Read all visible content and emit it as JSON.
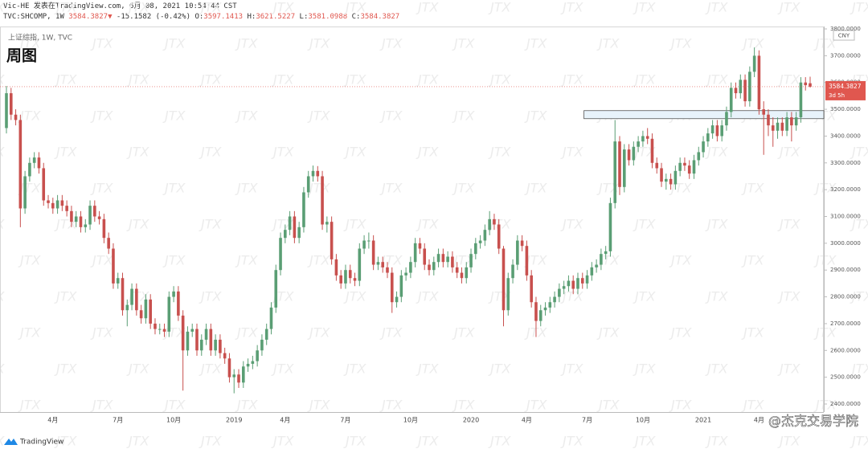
{
  "header": {
    "published": "Vic-HE 发表在TradingView.com, 6月 08, 2021 10:54:44 CST",
    "symbol": "TVC:SHCOMP, 1W",
    "arrow": "▼",
    "change": "-15.1582 (-0.42%)",
    "o": "O:",
    "h": "H:",
    "l": "L:",
    "c": "C:"
  },
  "footer": {
    "logo": "TradingView",
    "credit": "@杰克交易学院"
  },
  "watermark": "JTX",
  "chart_data": {
    "type": "candlestick",
    "title": "周图",
    "subtitle": "上证综指, 1W, TVC",
    "currency": "CNY",
    "countdown": "3d 5h",
    "up_color": "#5a9e74",
    "down_color": "#c8504e",
    "last_color": "#e0574f",
    "ylim": [
      2370,
      3809
    ],
    "yticks": [
      {
        "value": 2400,
        "label": "2400.0000"
      },
      {
        "value": 2500,
        "label": "2500.0000"
      },
      {
        "value": 2600,
        "label": "2600.0000"
      },
      {
        "value": 2700,
        "label": "2700.0000"
      },
      {
        "value": 2800,
        "label": "2800.0000"
      },
      {
        "value": 2900,
        "label": "2900.0000"
      },
      {
        "value": 3000,
        "label": "3000.0000"
      },
      {
        "value": 3100,
        "label": "3100.0000"
      },
      {
        "value": 3200,
        "label": "3200.0000"
      },
      {
        "value": 3300,
        "label": "3300.0000"
      },
      {
        "value": 3400,
        "label": "3400.0000"
      },
      {
        "value": 3500,
        "label": "3500.0000"
      },
      {
        "value": 3600,
        "label": "3600.0000"
      },
      {
        "value": 3700,
        "label": "3700.0000"
      },
      {
        "value": 3800,
        "label": "3800.0000"
      }
    ],
    "zone": {
      "start": 125,
      "low": 3465,
      "high": 3495
    },
    "categories": [
      null,
      null,
      null,
      null,
      null,
      null,
      null,
      null,
      null,
      null,
      "4月",
      null,
      null,
      null,
      null,
      null,
      null,
      null,
      null,
      null,
      null,
      null,
      null,
      null,
      "7月",
      null,
      null,
      null,
      null,
      null,
      null,
      null,
      null,
      null,
      null,
      null,
      "10月",
      null,
      null,
      null,
      null,
      null,
      null,
      null,
      null,
      null,
      null,
      null,
      null,
      "2019",
      null,
      null,
      null,
      null,
      null,
      null,
      null,
      null,
      null,
      null,
      "4月",
      null,
      null,
      null,
      null,
      null,
      null,
      null,
      null,
      null,
      null,
      null,
      null,
      "7月",
      null,
      null,
      null,
      null,
      null,
      null,
      null,
      null,
      null,
      null,
      null,
      null,
      null,
      "10月",
      null,
      null,
      null,
      null,
      null,
      null,
      null,
      null,
      null,
      null,
      null,
      null,
      "2020",
      null,
      null,
      null,
      null,
      null,
      null,
      null,
      null,
      null,
      null,
      null,
      "4月",
      null,
      null,
      null,
      null,
      null,
      null,
      null,
      null,
      null,
      null,
      null,
      null,
      "7月",
      null,
      null,
      null,
      null,
      null,
      null,
      null,
      null,
      null,
      null,
      null,
      "10月",
      null,
      null,
      null,
      null,
      null,
      null,
      null,
      null,
      null,
      null,
      null,
      null,
      "2021",
      null,
      null,
      null,
      null,
      null,
      null,
      null,
      null,
      null,
      null,
      null,
      "4月",
      null,
      null,
      null,
      null,
      null,
      null,
      null,
      null,
      null,
      null,
      null
    ],
    "open": [
      3430,
      3560,
      3480,
      3460,
      3130,
      3250,
      3300,
      3320,
      3280,
      3160,
      3150,
      3130,
      3160,
      3140,
      3120,
      3080,
      3100,
      3060,
      3070,
      3140,
      3100,
      3090,
      3020,
      2980,
      2850,
      2870,
      2750,
      2770,
      2830,
      2750,
      2720,
      2790,
      2700,
      2680,
      2680,
      2670,
      2800,
      2820,
      2730,
      2600,
      2670,
      2680,
      2600,
      2640,
      2680,
      2600,
      2640,
      2590,
      2570,
      2500,
      2510,
      2480,
      2540,
      2550,
      2560,
      2600,
      2640,
      2680,
      2760,
      2900,
      3020,
      3050,
      3100,
      3020,
      3060,
      3190,
      3250,
      3270,
      3250,
      3070,
      3080,
      2940,
      2880,
      2850,
      2900,
      2870,
      2860,
      2980,
      3010,
      3010,
      2920,
      2930,
      2910,
      2890,
      2780,
      2800,
      2880,
      2890,
      2930,
      3000,
      2980,
      2920,
      2900,
      2930,
      2960,
      2930,
      2950,
      2910,
      2890,
      2870,
      2910,
      2960,
      3000,
      3010,
      3050,
      3090,
      3070,
      2980,
      2750,
      2870,
      2920,
      3010,
      2990,
      2880,
      2780,
      2710,
      2750,
      2760,
      2780,
      2800,
      2830,
      2840,
      2860,
      2830,
      2870,
      2850,
      2880,
      2910,
      2920,
      2960,
      2970,
      3150,
      3380,
      3210,
      3350,
      3310,
      3360,
      3380,
      3400,
      3390,
      3300,
      3280,
      3230,
      3240,
      3220,
      3270,
      3300,
      3290,
      3260,
      3310,
      3340,
      3380,
      3410,
      3440,
      3400,
      3440,
      3490,
      3580,
      3560,
      3610,
      3530,
      3640,
      3700,
      3500,
      3480,
      3440,
      3420,
      3450,
      3420,
      3470,
      3440,
      3470,
      3600,
      3597.1413
    ],
    "high": [
      3587,
      3580,
      3500,
      3480,
      3270,
      3320,
      3340,
      3340,
      3300,
      3180,
      3170,
      3180,
      3180,
      3160,
      3140,
      3120,
      3120,
      3090,
      3160,
      3160,
      3120,
      3110,
      3040,
      3000,
      2890,
      2890,
      2790,
      2850,
      2850,
      2770,
      2810,
      2810,
      2720,
      2700,
      2700,
      2820,
      2840,
      2840,
      2750,
      2690,
      2700,
      2700,
      2660,
      2700,
      2700,
      2660,
      2660,
      2610,
      2590,
      2530,
      2530,
      2560,
      2570,
      2580,
      2620,
      2660,
      2700,
      2780,
      2920,
      3040,
      3070,
      3120,
      3120,
      3080,
      3210,
      3270,
      3290,
      3288,
      3270,
      3100,
      3100,
      2960,
      2900,
      2920,
      2920,
      2890,
      3000,
      3030,
      3040,
      3030,
      2950,
      2950,
      2930,
      2910,
      2820,
      2900,
      2910,
      2950,
      3020,
      3020,
      3000,
      2940,
      2950,
      2980,
      2980,
      2970,
      2970,
      2930,
      2910,
      2930,
      2980,
      3020,
      3030,
      3070,
      3120,
      3110,
      3090,
      2990,
      2890,
      2940,
      3030,
      3030,
      3010,
      2900,
      2800,
      2770,
      2780,
      2800,
      2820,
      2850,
      2860,
      2880,
      2880,
      2890,
      2890,
      2900,
      2930,
      2940,
      2980,
      2990,
      3170,
      3460,
      3400,
      3370,
      3370,
      3380,
      3400,
      3420,
      3430,
      3410,
      3320,
      3300,
      3260,
      3260,
      3290,
      3320,
      3320,
      3310,
      3330,
      3360,
      3400,
      3430,
      3460,
      3460,
      3460,
      3510,
      3600,
      3600,
      3630,
      3630,
      3660,
      3731,
      3720,
      3530,
      3500,
      3470,
      3470,
      3470,
      3490,
      3490,
      3490,
      3620,
      3620,
      3621.5227
    ],
    "low": [
      3410,
      3460,
      3440,
      3060,
      3110,
      3230,
      3280,
      3260,
      3140,
      3130,
      3110,
      3110,
      3120,
      3100,
      3060,
      3060,
      3040,
      3040,
      3050,
      3080,
      3070,
      3000,
      2960,
      2830,
      2830,
      2730,
      2690,
      2750,
      2730,
      2700,
      2700,
      2680,
      2660,
      2660,
      2650,
      2650,
      2780,
      2710,
      2450,
      2580,
      2650,
      2580,
      2580,
      2620,
      2580,
      2580,
      2570,
      2550,
      2480,
      2440,
      2460,
      2460,
      2520,
      2530,
      2540,
      2580,
      2620,
      2660,
      2740,
      2880,
      3000,
      3030,
      3000,
      3000,
      3040,
      3170,
      3230,
      3230,
      3050,
      3040,
      2920,
      2860,
      2830,
      2830,
      2850,
      2840,
      2840,
      2960,
      2980,
      2900,
      2900,
      2890,
      2870,
      2740,
      2760,
      2780,
      2860,
      2870,
      2910,
      2960,
      2900,
      2880,
      2880,
      2910,
      2910,
      2910,
      2890,
      2870,
      2850,
      2850,
      2890,
      2940,
      2980,
      2990,
      3030,
      3050,
      2960,
      2690,
      2730,
      2850,
      2900,
      2970,
      2860,
      2760,
      2650,
      2690,
      2730,
      2740,
      2760,
      2780,
      2810,
      2820,
      2810,
      2810,
      2830,
      2830,
      2860,
      2890,
      2900,
      2940,
      2950,
      3130,
      3180,
      3190,
      3290,
      3290,
      3340,
      3360,
      3370,
      3280,
      3260,
      3210,
      3200,
      3200,
      3200,
      3250,
      3270,
      3240,
      3240,
      3290,
      3320,
      3360,
      3390,
      3380,
      3380,
      3420,
      3470,
      3540,
      3540,
      3510,
      3510,
      3620,
      3480,
      3330,
      3400,
      3360,
      3390,
      3400,
      3400,
      3380,
      3420,
      3450,
      3570,
      3581.0988
    ],
    "close": [
      3560,
      3480,
      3460,
      3130,
      3250,
      3300,
      3320,
      3280,
      3160,
      3150,
      3130,
      3160,
      3140,
      3120,
      3080,
      3100,
      3060,
      3070,
      3140,
      3100,
      3090,
      3020,
      2980,
      2850,
      2870,
      2750,
      2770,
      2830,
      2750,
      2720,
      2790,
      2700,
      2680,
      2680,
      2670,
      2800,
      2820,
      2730,
      2600,
      2670,
      2680,
      2600,
      2640,
      2680,
      2600,
      2640,
      2590,
      2570,
      2500,
      2510,
      2480,
      2540,
      2550,
      2560,
      2600,
      2640,
      2680,
      2760,
      2900,
      3020,
      3050,
      3100,
      3020,
      3060,
      3190,
      3250,
      3270,
      3250,
      3070,
      3080,
      2940,
      2880,
      2850,
      2900,
      2870,
      2860,
      2980,
      3010,
      3010,
      2920,
      2930,
      2910,
      2890,
      2780,
      2800,
      2880,
      2890,
      2930,
      3000,
      2980,
      2920,
      2900,
      2930,
      2960,
      2930,
      2950,
      2910,
      2890,
      2870,
      2910,
      2960,
      3000,
      3010,
      3050,
      3090,
      3070,
      2980,
      2750,
      2870,
      2920,
      3010,
      2990,
      2880,
      2780,
      2710,
      2750,
      2760,
      2780,
      2800,
      2830,
      2840,
      2860,
      2830,
      2870,
      2850,
      2880,
      2910,
      2920,
      2960,
      2970,
      3150,
      3380,
      3210,
      3350,
      3310,
      3360,
      3380,
      3400,
      3390,
      3300,
      3280,
      3230,
      3240,
      3220,
      3270,
      3300,
      3290,
      3260,
      3310,
      3340,
      3380,
      3410,
      3440,
      3400,
      3440,
      3490,
      3580,
      3560,
      3610,
      3530,
      3640,
      3700,
      3500,
      3480,
      3440,
      3420,
      3450,
      3420,
      3470,
      3440,
      3470,
      3600,
      3590,
      3584.3827
    ]
  }
}
